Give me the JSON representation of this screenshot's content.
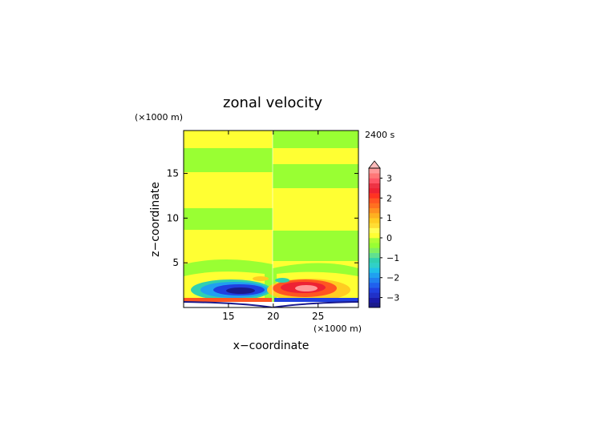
{
  "chart_data": {
    "type": "heatmap",
    "title": "zonal velocity",
    "time_label": "2400 s",
    "xlabel": "x−coordinate",
    "ylabel": "z−coordinate",
    "x_unit": "(×1000 m)",
    "y_unit": "(×1000 m)",
    "xlim": [
      10,
      29.5
    ],
    "ylim": [
      0,
      19.8
    ],
    "x_ticks": [
      15,
      20,
      25
    ],
    "y_ticks": [
      5,
      10,
      15
    ],
    "colorbar": {
      "levels": [
        -3.5,
        -3.25,
        -3,
        -2.75,
        -2.5,
        -2.25,
        -2,
        -1.75,
        -1.5,
        -1.25,
        -1,
        -0.75,
        -0.5,
        -0.25,
        0,
        0.25,
        0.5,
        0.75,
        1,
        1.25,
        1.5,
        1.75,
        2,
        2.25,
        2.5,
        2.75,
        3,
        3.25,
        3.5
      ],
      "tick_labels": [
        "3",
        "2",
        "1",
        "0",
        "−1",
        "−2",
        "−3"
      ],
      "tick_values": [
        3,
        2,
        1,
        0,
        -1,
        -2,
        -3
      ],
      "extend": "max"
    },
    "colors": {
      "neg3": "#1a1a8c",
      "neg2": "#2040e0",
      "neg1": "#20a0f0",
      "neg05": "#30d0b0",
      "zero": "#99ff33",
      "pos05": "#ffff33",
      "pos1": "#ffcc22",
      "pos2": "#ff5522",
      "pos3": "#ee2233",
      "pos_max": "#ff9999",
      "frame": "#000000"
    },
    "field_description_regions": [
      {
        "name": "upper yellow bands",
        "value": 0.2
      },
      {
        "name": "upper green bands",
        "value": -0.1
      },
      {
        "name": "left negative jet",
        "value": -2.8
      },
      {
        "name": "right positive jet",
        "value": 2.4
      },
      {
        "name": "surface layer",
        "value": 3.2
      }
    ]
  }
}
